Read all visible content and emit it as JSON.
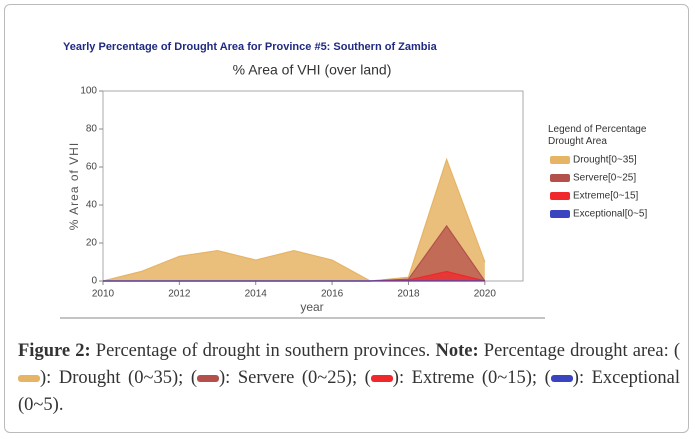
{
  "chart_data": {
    "type": "area",
    "header": "Yearly Percentage of Drought Area for Province #5: Southern of Zambia",
    "title": "% Area of VHI (over land)",
    "x_label": "year",
    "y_label": "% Area of VHI",
    "x": [
      2010,
      2011,
      2012,
      2013,
      2014,
      2015,
      2016,
      2017,
      2018,
      2019,
      2020
    ],
    "series": [
      {
        "name": "Drought[0~35]",
        "color": "#e6b465",
        "values": [
          0,
          5,
          13,
          16,
          11,
          16,
          11,
          0,
          2,
          64,
          10
        ]
      },
      {
        "name": "Servere[0~25]",
        "color": "#b4504c",
        "values": [
          0,
          0,
          0,
          0,
          0,
          0,
          0,
          0,
          1,
          29,
          0
        ]
      },
      {
        "name": "Extreme[0~15]",
        "color": "#f0282c",
        "values": [
          0,
          0,
          0,
          0,
          0,
          0,
          0,
          0,
          0.5,
          5,
          0
        ]
      },
      {
        "name": "Exceptional[0~5]",
        "color": "#3a44c0",
        "values": [
          0,
          0,
          0,
          0,
          0,
          0,
          0,
          0,
          0,
          0,
          0
        ]
      }
    ],
    "legend_title": "Legend of Percentage Drought Area",
    "xlim": [
      2010,
      2021
    ],
    "xticks": [
      2010,
      2012,
      2014,
      2016,
      2018,
      2020
    ],
    "ylim": [
      0,
      100
    ],
    "yticks": [
      0,
      20,
      40,
      60,
      80,
      100
    ]
  },
  "caption": {
    "label": "Figure 2:",
    "text": "Percentage of drought in southern provinces.",
    "note_label": "Note:",
    "note_parts": [
      "Percentage drought area: (",
      "): Drought (0~35); (",
      "): Servere (0~25); (",
      "): Extreme (0~15); (",
      "): Exceptional (0~5)."
    ],
    "swatches": [
      "#e6b465",
      "#b4504c",
      "#f0282c",
      "#3a44c0"
    ]
  }
}
